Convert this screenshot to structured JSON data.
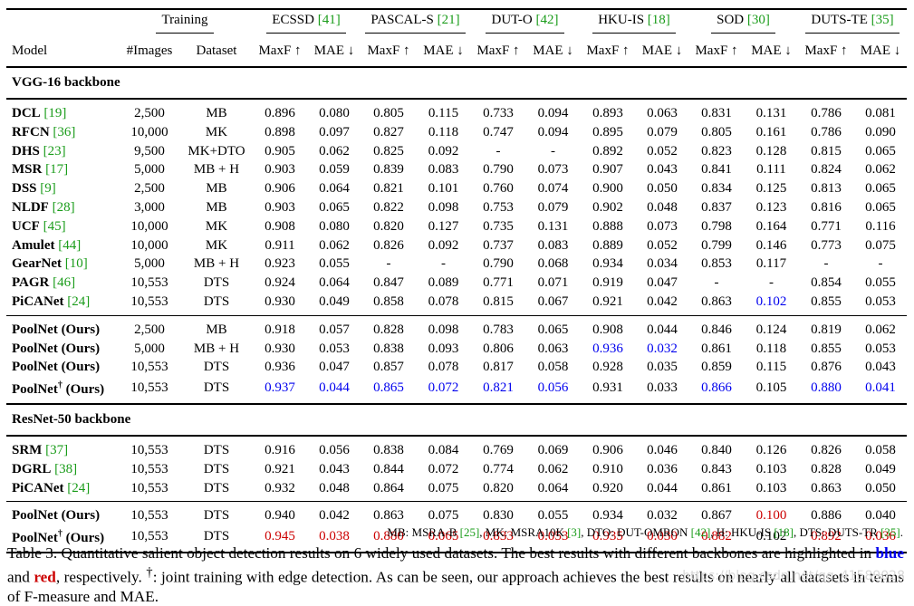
{
  "header": {
    "training": "Training",
    "model": "Model",
    "images": "#Images",
    "dataset": "Dataset",
    "datasets": [
      {
        "name": "ECSSD ",
        "cite": "[41]"
      },
      {
        "name": "PASCAL-S ",
        "cite": "[21]"
      },
      {
        "name": "DUT-O ",
        "cite": "[42]"
      },
      {
        "name": "HKU-IS ",
        "cite": "[18]"
      },
      {
        "name": "SOD ",
        "cite": "[30]"
      },
      {
        "name": "DUTS-TE ",
        "cite": "[35]"
      }
    ],
    "maxf": "MaxF ↑",
    "mae": "MAE ↓"
  },
  "sections": [
    {
      "title": "VGG-16 backbone",
      "groups": [
        [
          {
            "name": "DCL",
            "cite": "[19]",
            "images": "2,500",
            "dataset": "MB",
            "values": [
              "0.896",
              "0.080",
              "0.805",
              "0.115",
              "0.733",
              "0.094",
              "0.893",
              "0.063",
              "0.831",
              "0.131",
              "0.786",
              "0.081"
            ],
            "styles": [
              "",
              "",
              "",
              "",
              "",
              "",
              "",
              "",
              "",
              "",
              "",
              ""
            ]
          },
          {
            "name": "RFCN",
            "cite": "[36]",
            "images": "10,000",
            "dataset": "MK",
            "values": [
              "0.898",
              "0.097",
              "0.827",
              "0.118",
              "0.747",
              "0.094",
              "0.895",
              "0.079",
              "0.805",
              "0.161",
              "0.786",
              "0.090"
            ],
            "styles": [
              "",
              "",
              "",
              "",
              "",
              "",
              "",
              "",
              "",
              "",
              "",
              ""
            ]
          },
          {
            "name": "DHS",
            "cite": "[23]",
            "images": "9,500",
            "dataset": "MK+DTO",
            "values": [
              "0.905",
              "0.062",
              "0.825",
              "0.092",
              "-",
              "-",
              "0.892",
              "0.052",
              "0.823",
              "0.128",
              "0.815",
              "0.065"
            ],
            "styles": [
              "",
              "",
              "",
              "",
              "",
              "",
              "",
              "",
              "",
              "",
              "",
              ""
            ]
          },
          {
            "name": "MSR",
            "cite": "[17]",
            "images": "5,000",
            "dataset": "MB + H",
            "values": [
              "0.903",
              "0.059",
              "0.839",
              "0.083",
              "0.790",
              "0.073",
              "0.907",
              "0.043",
              "0.841",
              "0.111",
              "0.824",
              "0.062"
            ],
            "styles": [
              "",
              "",
              "",
              "",
              "",
              "",
              "",
              "",
              "",
              "",
              "",
              ""
            ]
          },
          {
            "name": "DSS",
            "cite": "[9]",
            "images": "2,500",
            "dataset": "MB",
            "values": [
              "0.906",
              "0.064",
              "0.821",
              "0.101",
              "0.760",
              "0.074",
              "0.900",
              "0.050",
              "0.834",
              "0.125",
              "0.813",
              "0.065"
            ],
            "styles": [
              "",
              "",
              "",
              "",
              "",
              "",
              "",
              "",
              "",
              "",
              "",
              ""
            ]
          },
          {
            "name": "NLDF",
            "cite": "[28]",
            "images": "3,000",
            "dataset": "MB",
            "values": [
              "0.903",
              "0.065",
              "0.822",
              "0.098",
              "0.753",
              "0.079",
              "0.902",
              "0.048",
              "0.837",
              "0.123",
              "0.816",
              "0.065"
            ],
            "styles": [
              "",
              "",
              "",
              "",
              "",
              "",
              "",
              "",
              "",
              "",
              "",
              ""
            ]
          },
          {
            "name": "UCF",
            "cite": "[45]",
            "images": "10,000",
            "dataset": "MK",
            "values": [
              "0.908",
              "0.080",
              "0.820",
              "0.127",
              "0.735",
              "0.131",
              "0.888",
              "0.073",
              "0.798",
              "0.164",
              "0.771",
              "0.116"
            ],
            "styles": [
              "",
              "",
              "",
              "",
              "",
              "",
              "",
              "",
              "",
              "",
              "",
              ""
            ]
          },
          {
            "name": "Amulet",
            "cite": "[44]",
            "images": "10,000",
            "dataset": "MK",
            "values": [
              "0.911",
              "0.062",
              "0.826",
              "0.092",
              "0.737",
              "0.083",
              "0.889",
              "0.052",
              "0.799",
              "0.146",
              "0.773",
              "0.075"
            ],
            "styles": [
              "",
              "",
              "",
              "",
              "",
              "",
              "",
              "",
              "",
              "",
              "",
              ""
            ]
          },
          {
            "name": "GearNet",
            "cite": "[10]",
            "images": "5,000",
            "dataset": "MB + H",
            "values": [
              "0.923",
              "0.055",
              "-",
              "-",
              "0.790",
              "0.068",
              "0.934",
              "0.034",
              "0.853",
              "0.117",
              "-",
              "-"
            ],
            "styles": [
              "",
              "",
              "",
              "",
              "",
              "",
              "",
              "",
              "",
              "",
              "",
              ""
            ]
          },
          {
            "name": "PAGR",
            "cite": "[46]",
            "images": "10,553",
            "dataset": "DTS",
            "values": [
              "0.924",
              "0.064",
              "0.847",
              "0.089",
              "0.771",
              "0.071",
              "0.919",
              "0.047",
              "-",
              "-",
              "0.854",
              "0.055"
            ],
            "styles": [
              "",
              "",
              "",
              "",
              "",
              "",
              "",
              "",
              "",
              "",
              "",
              ""
            ]
          },
          {
            "name": "PiCANet",
            "cite": "[24]",
            "images": "10,553",
            "dataset": "DTS",
            "values": [
              "0.930",
              "0.049",
              "0.858",
              "0.078",
              "0.815",
              "0.067",
              "0.921",
              "0.042",
              "0.863",
              "0.102",
              "0.855",
              "0.053"
            ],
            "styles": [
              "",
              "",
              "",
              "",
              "",
              "",
              "",
              "",
              "",
              "blue",
              "",
              ""
            ]
          }
        ],
        [
          {
            "name": "PoolNet (Ours)",
            "cite": "",
            "images": "2,500",
            "dataset": "MB",
            "values": [
              "0.918",
              "0.057",
              "0.828",
              "0.098",
              "0.783",
              "0.065",
              "0.908",
              "0.044",
              "0.846",
              "0.124",
              "0.819",
              "0.062"
            ],
            "styles": [
              "",
              "",
              "",
              "",
              "",
              "",
              "",
              "",
              "",
              "",
              "",
              ""
            ]
          },
          {
            "name": "PoolNet (Ours)",
            "cite": "",
            "images": "5,000",
            "dataset": "MB + H",
            "values": [
              "0.930",
              "0.053",
              "0.838",
              "0.093",
              "0.806",
              "0.063",
              "0.936",
              "0.032",
              "0.861",
              "0.118",
              "0.855",
              "0.053"
            ],
            "styles": [
              "",
              "",
              "",
              "",
              "",
              "",
              "blue",
              "blue",
              "",
              "",
              "",
              ""
            ]
          },
          {
            "name": "PoolNet (Ours)",
            "cite": "",
            "images": "10,553",
            "dataset": "DTS",
            "values": [
              "0.936",
              "0.047",
              "0.857",
              "0.078",
              "0.817",
              "0.058",
              "0.928",
              "0.035",
              "0.859",
              "0.115",
              "0.876",
              "0.043"
            ],
            "styles": [
              "",
              "",
              "",
              "",
              "",
              "",
              "",
              "",
              "",
              "",
              "",
              ""
            ]
          },
          {
            "name": "PoolNet",
            "dagger": "†",
            "suffix": " (Ours)",
            "cite": "",
            "images": "10,553",
            "dataset": "DTS",
            "values": [
              "0.937",
              "0.044",
              "0.865",
              "0.072",
              "0.821",
              "0.056",
              "0.931",
              "0.033",
              "0.866",
              "0.105",
              "0.880",
              "0.041"
            ],
            "styles": [
              "blue",
              "blue",
              "blue",
              "blue",
              "blue",
              "blue",
              "",
              "",
              "blue",
              "",
              "blue",
              "blue"
            ]
          }
        ]
      ]
    },
    {
      "title": "ResNet-50 backbone",
      "groups": [
        [
          {
            "name": "SRM",
            "cite": "[37]",
            "images": "10,553",
            "dataset": "DTS",
            "values": [
              "0.916",
              "0.056",
              "0.838",
              "0.084",
              "0.769",
              "0.069",
              "0.906",
              "0.046",
              "0.840",
              "0.126",
              "0.826",
              "0.058"
            ],
            "styles": [
              "",
              "",
              "",
              "",
              "",
              "",
              "",
              "",
              "",
              "",
              "",
              ""
            ]
          },
          {
            "name": "DGRL",
            "cite": "[38]",
            "images": "10,553",
            "dataset": "DTS",
            "values": [
              "0.921",
              "0.043",
              "0.844",
              "0.072",
              "0.774",
              "0.062",
              "0.910",
              "0.036",
              "0.843",
              "0.103",
              "0.828",
              "0.049"
            ],
            "styles": [
              "",
              "",
              "",
              "",
              "",
              "",
              "",
              "",
              "",
              "",
              "",
              ""
            ]
          },
          {
            "name": "PiCANet",
            "cite": "[24]",
            "images": "10,553",
            "dataset": "DTS",
            "values": [
              "0.932",
              "0.048",
              "0.864",
              "0.075",
              "0.820",
              "0.064",
              "0.920",
              "0.044",
              "0.861",
              "0.103",
              "0.863",
              "0.050"
            ],
            "styles": [
              "",
              "",
              "",
              "",
              "",
              "",
              "",
              "",
              "",
              "",
              "",
              ""
            ]
          }
        ],
        [
          {
            "name": "PoolNet (Ours)",
            "cite": "",
            "images": "10,553",
            "dataset": "DTS",
            "values": [
              "0.940",
              "0.042",
              "0.863",
              "0.075",
              "0.830",
              "0.055",
              "0.934",
              "0.032",
              "0.867",
              "0.100",
              "0.886",
              "0.040"
            ],
            "styles": [
              "",
              "",
              "",
              "",
              "",
              "",
              "",
              "",
              "",
              "red",
              "",
              ""
            ]
          },
          {
            "name": "PoolNet",
            "dagger": "†",
            "suffix": " (Ours)",
            "cite": "",
            "images": "10,553",
            "dataset": "DTS",
            "values": [
              "0.945",
              "0.038",
              "0.880",
              "0.065",
              "0.833",
              "0.053",
              "0.935",
              "0.030",
              "0.882",
              "0.102",
              "0.892",
              "0.036"
            ],
            "styles": [
              "red",
              "red",
              "red",
              "red",
              "red",
              "red",
              "red",
              "red",
              "red",
              "",
              "red",
              "red"
            ]
          }
        ]
      ]
    }
  ],
  "footnote": {
    "parts": [
      {
        "t": "MB: MSRA-B "
      },
      {
        "t": "[25]",
        "c": "cite"
      },
      {
        "t": ", MK: MSRA10K "
      },
      {
        "t": "[3]",
        "c": "cite"
      },
      {
        "t": ", DTO: DUT-OMRON "
      },
      {
        "t": "[42]",
        "c": "cite"
      },
      {
        "t": ", H: HKU-IS "
      },
      {
        "t": "[18]",
        "c": "cite"
      },
      {
        "t": ", DTS: DUTS-TR "
      },
      {
        "t": "[35]",
        "c": "cite"
      },
      {
        "t": "."
      }
    ]
  },
  "caption": {
    "parts": [
      {
        "t": "Table 3. Quantitative salient object detection results on 6 widely used datasets. The best results with different backbones are highlighted in "
      },
      {
        "t": "blue",
        "c": "blue"
      },
      {
        "t": " and "
      },
      {
        "t": "red",
        "c": "red"
      },
      {
        "t": ", respectively.  "
      },
      {
        "t": "†",
        "c": "sup"
      },
      {
        "t": ": joint training with edge detection.  As can be seen, our approach achieves the best results on nearly all datasets in terms of F-measure and MAE."
      }
    ]
  },
  "watermark": "https://blog.csdn.net/qq_41589028",
  "colors": {
    "cite": "#1a9c1a",
    "blue": "#0000ee",
    "red": "#cc0000"
  }
}
